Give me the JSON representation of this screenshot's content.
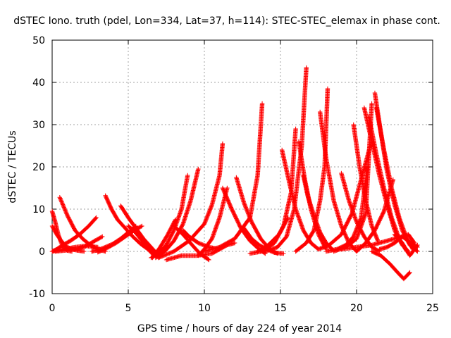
{
  "chart_data": {
    "type": "scatter",
    "title": "dSTEC Iono. truth (pdel, Lon=334, Lat=37, h=114): STEC-STEC_elemax in phase cont.",
    "xlabel": "GPS time / hours of day 224 of year 2014",
    "ylabel": "dSTEC  / TECUs",
    "xlim": [
      0,
      25
    ],
    "ylim": [
      -10,
      50
    ],
    "x_ticks": [
      0,
      5,
      10,
      15,
      20,
      25
    ],
    "y_ticks": [
      -10,
      0,
      10,
      20,
      30,
      40,
      50
    ],
    "x_tick_labels": [
      "0",
      "5",
      "10",
      "15",
      "20",
      "25"
    ],
    "y_tick_labels": [
      "-10",
      "0",
      "10",
      "20",
      "30",
      "40",
      "50"
    ],
    "grid": true,
    "marker": "plus",
    "color": "#ff0000",
    "series": [
      {
        "x": [
          0.0,
          0.2,
          0.4,
          0.6,
          0.8,
          1.0,
          1.3
        ],
        "y": [
          9.5,
          7.0,
          4.0,
          2.0,
          0.8,
          0.2,
          0.0
        ]
      },
      {
        "x": [
          0.0,
          0.3,
          0.6,
          0.9,
          1.3,
          1.7,
          2.1
        ],
        "y": [
          6.0,
          4.0,
          2.5,
          1.2,
          0.5,
          0.2,
          0.0
        ]
      },
      {
        "x": [
          0.0,
          0.3,
          0.7,
          1.2,
          1.8,
          2.4,
          2.9
        ],
        "y": [
          0.0,
          0.5,
          1.5,
          2.5,
          4.0,
          6.0,
          8.0
        ]
      },
      {
        "x": [
          0.5,
          1.0,
          1.5,
          2.0,
          2.5,
          3.0,
          3.5
        ],
        "y": [
          12.8,
          8.5,
          5.0,
          3.0,
          1.5,
          0.5,
          0.0
        ]
      },
      {
        "x": [
          0.2,
          0.8,
          1.5,
          2.2,
          2.8,
          3.3
        ],
        "y": [
          0.0,
          0.2,
          0.5,
          1.2,
          2.5,
          3.5
        ]
      },
      {
        "x": [
          0.0,
          0.8,
          1.5,
          2.2,
          3.0
        ],
        "y": [
          0.0,
          0.5,
          1.0,
          1.3,
          1.0
        ]
      },
      {
        "x": [
          3.5,
          3.9,
          4.3,
          4.8,
          5.3,
          5.8,
          6.3,
          6.7
        ],
        "y": [
          13.2,
          10.0,
          7.5,
          5.5,
          3.5,
          1.8,
          0.5,
          -1.0
        ]
      },
      {
        "x": [
          2.6,
          3.0,
          3.5,
          4.0,
          4.5,
          5.0,
          5.5
        ],
        "y": [
          0.0,
          0.3,
          1.0,
          1.8,
          3.0,
          4.5,
          6.0
        ]
      },
      {
        "x": [
          3.0,
          3.6,
          4.2,
          4.8,
          5.4,
          5.9
        ],
        "y": [
          -0.2,
          0.8,
          2.0,
          3.5,
          5.0,
          6.0
        ]
      },
      {
        "x": [
          4.5,
          5.0,
          5.5,
          6.0,
          6.5,
          7.0
        ],
        "y": [
          10.8,
          8.0,
          5.5,
          3.0,
          1.0,
          -1.0
        ]
      },
      {
        "x": [
          5.0,
          5.4,
          5.8,
          6.2,
          6.6,
          7.0
        ],
        "y": [
          6.0,
          4.8,
          3.0,
          1.2,
          -0.3,
          -1.5
        ]
      },
      {
        "x": [
          6.5,
          7.0,
          7.5,
          8.0,
          8.5,
          8.9
        ],
        "y": [
          -1.5,
          -0.5,
          1.5,
          5.0,
          10.0,
          18.0
        ]
      },
      {
        "x": [
          6.8,
          7.4,
          8.0,
          8.6,
          9.1,
          9.6
        ],
        "y": [
          -1.5,
          0.0,
          2.5,
          6.5,
          12.0,
          19.5
        ]
      },
      {
        "x": [
          6.6,
          7.1,
          7.6,
          8.1
        ],
        "y": [
          -1.5,
          1.0,
          4.0,
          7.5
        ]
      },
      {
        "x": [
          7.0,
          8.0,
          9.0,
          10.0,
          10.5,
          11.0,
          11.2
        ],
        "y": [
          -1.5,
          0.0,
          2.5,
          6.5,
          11.0,
          18.0,
          25.5
        ]
      },
      {
        "x": [
          7.5,
          8.5,
          9.5,
          10.5,
          11.0,
          11.5,
          12.0
        ],
        "y": [
          -2.0,
          -1.0,
          -1.0,
          -0.5,
          0.5,
          1.5,
          2.0
        ]
      },
      {
        "x": [
          8.0,
          8.6,
          9.2,
          9.7,
          10.3
        ],
        "y": [
          6.0,
          4.0,
          1.5,
          -0.5,
          -2.0
        ]
      },
      {
        "x": [
          8.6,
          9.0,
          9.6,
          10.3,
          11.0
        ],
        "y": [
          5.0,
          3.5,
          2.0,
          1.0,
          0.5
        ]
      },
      {
        "x": [
          9.6,
          10.0,
          10.5,
          11.0,
          11.5
        ],
        "y": [
          -1.0,
          0.5,
          3.0,
          8.0,
          15.0
        ]
      },
      {
        "x": [
          10.0,
          11.0,
          12.0,
          13.0,
          13.5,
          13.8
        ],
        "y": [
          0.0,
          1.0,
          3.0,
          8.0,
          18.0,
          35.0
        ]
      },
      {
        "x": [
          11.2,
          11.8,
          12.4,
          13.0,
          13.6,
          14.0
        ],
        "y": [
          15.0,
          10.0,
          5.5,
          2.5,
          0.5,
          -0.5
        ]
      },
      {
        "x": [
          12.1,
          12.6,
          13.1,
          13.7,
          14.3,
          14.8
        ],
        "y": [
          17.5,
          11.5,
          7.0,
          3.0,
          0.5,
          -0.5
        ]
      },
      {
        "x": [
          12.6,
          13.1,
          13.6,
          14.1,
          14.6,
          15.2
        ],
        "y": [
          5.5,
          3.0,
          1.5,
          0.5,
          -0.3,
          -0.5
        ]
      },
      {
        "x": [
          13.0,
          13.8,
          14.6,
          15.2,
          15.7,
          16.0
        ],
        "y": [
          -0.5,
          0.0,
          2.0,
          6.0,
          14.0,
          29.0
        ]
      },
      {
        "x": [
          14.0,
          14.8,
          15.4,
          15.9,
          16.4,
          16.7
        ],
        "y": [
          0.0,
          1.0,
          3.5,
          10.0,
          25.0,
          43.5
        ]
      },
      {
        "x": [
          13.5,
          14.2,
          14.9,
          15.5
        ],
        "y": [
          0.0,
          1.5,
          4.0,
          8.0
        ]
      },
      {
        "x": [
          15.1,
          15.6,
          16.0,
          16.5,
          17.0,
          17.5
        ],
        "y": [
          24.0,
          16.0,
          10.0,
          5.0,
          2.0,
          0.5
        ]
      },
      {
        "x": [
          16.2,
          16.6,
          17.0,
          17.5,
          18.0
        ],
        "y": [
          26.0,
          17.0,
          10.0,
          4.0,
          0.5
        ]
      },
      {
        "x": [
          16.5,
          16.8,
          17.2,
          17.6,
          18.0,
          18.4
        ],
        "y": [
          18.0,
          13.0,
          8.5,
          4.5,
          2.0,
          0.5
        ]
      },
      {
        "x": [
          16.0,
          16.7,
          17.2,
          17.6,
          17.9,
          18.1
        ],
        "y": [
          0.0,
          2.0,
          5.0,
          12.0,
          20.0,
          38.5
        ]
      },
      {
        "x": [
          17.6,
          18.0,
          18.5,
          19.0,
          19.5,
          20.0
        ],
        "y": [
          33.0,
          22.0,
          12.0,
          6.0,
          2.0,
          0.0
        ]
      },
      {
        "x": [
          18.0,
          18.7,
          19.3,
          19.8,
          20.3,
          20.7
        ],
        "y": [
          0.0,
          0.5,
          1.5,
          3.5,
          8.0,
          20.0
        ]
      },
      {
        "x": [
          18.5,
          19.3,
          20.0,
          20.6,
          21.0
        ],
        "y": [
          0.0,
          1.0,
          3.0,
          9.0,
          35.0
        ]
      },
      {
        "x": [
          17.5,
          18.2,
          19.0,
          19.7,
          20.3,
          20.9
        ],
        "y": [
          0.5,
          1.5,
          4.0,
          9.0,
          17.0,
          25.0
        ]
      },
      {
        "x": [
          19.0,
          19.5,
          20.0,
          20.5,
          21.0,
          21.5
        ],
        "y": [
          18.5,
          12.0,
          7.0,
          3.5,
          1.0,
          0.0
        ]
      },
      {
        "x": [
          19.8,
          20.2,
          20.6,
          21.0,
          21.4
        ],
        "y": [
          30.0,
          20.0,
          12.0,
          6.0,
          2.5
        ]
      },
      {
        "x": [
          20.5,
          21.0,
          21.5,
          22.0,
          22.5,
          23.0,
          23.4
        ],
        "y": [
          34.0,
          26.0,
          18.0,
          11.0,
          5.0,
          1.5,
          0.0
        ]
      },
      {
        "x": [
          20.8,
          21.3,
          21.8,
          22.3,
          22.8,
          23.3
        ],
        "y": [
          32.0,
          23.0,
          15.0,
          8.0,
          3.0,
          0.0
        ]
      },
      {
        "x": [
          21.2,
          21.6,
          22.0,
          22.5,
          23.0,
          23.5,
          24.0
        ],
        "y": [
          37.5,
          28.0,
          19.0,
          11.0,
          5.0,
          1.5,
          0.0
        ]
      },
      {
        "x": [
          21.3,
          21.8,
          22.3,
          22.8,
          23.3,
          23.7
        ],
        "y": [
          34.0,
          24.0,
          15.0,
          8.0,
          3.0,
          0.5
        ]
      },
      {
        "x": [
          21.0,
          21.6,
          22.2,
          22.7,
          23.1,
          23.5
        ],
        "y": [
          0.0,
          -1.0,
          -3.0,
          -5.0,
          -6.5,
          -5.0
        ]
      },
      {
        "x": [
          20.0,
          20.6,
          21.2,
          21.8,
          22.4
        ],
        "y": [
          0.0,
          2.0,
          5.0,
          9.5,
          17.0
        ]
      },
      {
        "x": [
          19.0,
          20.0,
          21.0,
          22.0,
          23.0,
          24.0
        ],
        "y": [
          0.5,
          1.0,
          1.5,
          2.5,
          3.5,
          1.0
        ]
      },
      {
        "x": [
          21.5,
          22.0,
          22.5,
          23.0,
          23.4,
          23.8
        ],
        "y": [
          0.5,
          1.0,
          2.0,
          3.5,
          4.0,
          2.0
        ]
      },
      {
        "x": [
          22.5,
          23.0,
          23.5,
          24.0
        ],
        "y": [
          4.0,
          2.0,
          -1.0,
          1.5
        ]
      }
    ]
  }
}
